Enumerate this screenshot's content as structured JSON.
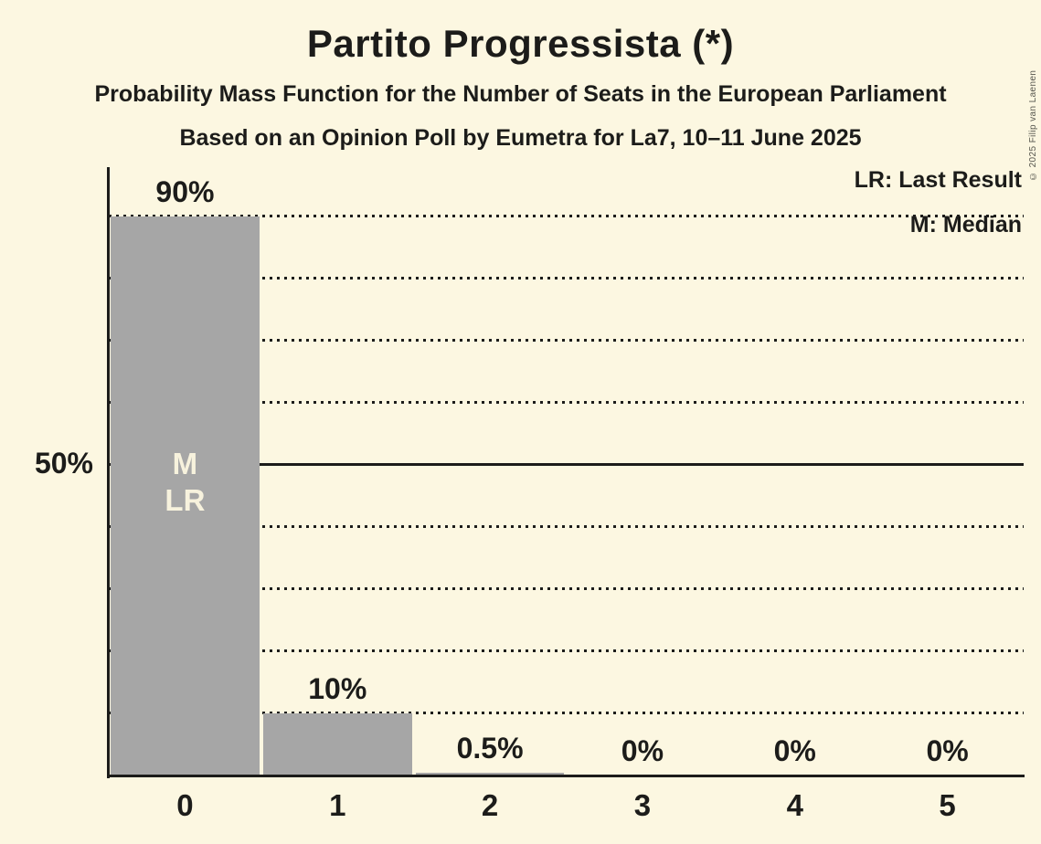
{
  "title": "Partito Progressista (*)",
  "subtitle": "Probability Mass Function for the Number of Seats in the European Parliament",
  "poll_info": "Based on an Opinion Poll by Eumetra for La7, 10–11 June 2025",
  "copyright": "© 2025 Filip van Laenen",
  "legend": {
    "last_result": "LR: Last Result",
    "median": "M: Median"
  },
  "y_axis_label": "50%",
  "colors": {
    "background": "#fcf7e1",
    "bar": "#a6a6a6",
    "ink": "#1c1c1a",
    "bar_annotation_text": "#f7f2dd"
  },
  "chart_data": {
    "type": "bar",
    "title": "Partito Progressista (*)",
    "categories": [
      "0",
      "1",
      "2",
      "3",
      "4",
      "5"
    ],
    "values": [
      90,
      10,
      0.5,
      0,
      0,
      0
    ],
    "value_labels": [
      "90%",
      "10%",
      "0.5%",
      "0%",
      "0%",
      "0%"
    ],
    "ylim": [
      0,
      100
    ],
    "gridline_step_pct": 10,
    "solid_gridline_pct": 50,
    "grid": "dotted-horizontal",
    "legend_position": "top-right",
    "median_seat": 0,
    "last_result_seat": 0,
    "bar_annotation": {
      "seat_index": 0,
      "lines": [
        "M",
        "LR"
      ]
    }
  }
}
